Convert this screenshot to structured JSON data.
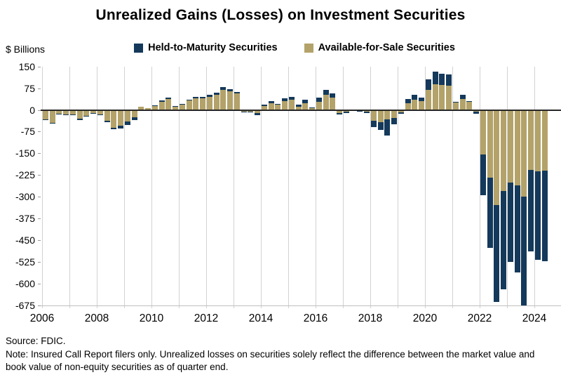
{
  "title": "Unrealized Gains (Losses) on Investment Securities",
  "y_axis_unit": "$ Billions",
  "legend": {
    "htm_label": "Held-to-Maturity Securities",
    "afs_label": "Available-for-Sale Securities"
  },
  "source": "Source: FDIC.",
  "note": "Note: Insured Call Report filers only. Unrealized losses on securities solely reflect the difference between the market value and book value of non-equity securities as of quarter end.",
  "colors": {
    "htm": "#14395B",
    "afs": "#B3A269",
    "gridline": "#D2D2D2",
    "zero_line": "#262626",
    "text": "#000000"
  },
  "chart_data": {
    "type": "bar",
    "stacked": true,
    "title": "Unrealized Gains (Losses) on Investment Securities",
    "ylabel": "$ Billions",
    "ylim": [
      -675,
      150
    ],
    "y_ticks": [
      150,
      75,
      0,
      -75,
      -150,
      -225,
      -300,
      -375,
      -450,
      -525,
      -600,
      -675
    ],
    "x_tick_labels": [
      "2006",
      "2008",
      "2010",
      "2012",
      "2014",
      "2016",
      "2018",
      "2020",
      "2022",
      "2024"
    ],
    "grid": "vertical-yearly",
    "legend_position": "top",
    "categories": [
      "2006 Q1",
      "2006 Q2",
      "2006 Q3",
      "2006 Q4",
      "2007 Q1",
      "2007 Q2",
      "2007 Q3",
      "2007 Q4",
      "2008 Q1",
      "2008 Q2",
      "2008 Q3",
      "2008 Q4",
      "2009 Q1",
      "2009 Q2",
      "2009 Q3",
      "2009 Q4",
      "2010 Q1",
      "2010 Q2",
      "2010 Q3",
      "2010 Q4",
      "2011 Q1",
      "2011 Q2",
      "2011 Q3",
      "2011 Q4",
      "2012 Q1",
      "2012 Q2",
      "2012 Q3",
      "2012 Q4",
      "2013 Q1",
      "2013 Q2",
      "2013 Q3",
      "2013 Q4",
      "2014 Q1",
      "2014 Q2",
      "2014 Q3",
      "2014 Q4",
      "2015 Q1",
      "2015 Q2",
      "2015 Q3",
      "2015 Q4",
      "2016 Q1",
      "2016 Q2",
      "2016 Q3",
      "2016 Q4",
      "2017 Q1",
      "2017 Q2",
      "2017 Q3",
      "2017 Q4",
      "2018 Q1",
      "2018 Q2",
      "2018 Q3",
      "2018 Q4",
      "2019 Q1",
      "2019 Q2",
      "2019 Q3",
      "2019 Q4",
      "2020 Q1",
      "2020 Q2",
      "2020 Q3",
      "2020 Q4",
      "2021 Q1",
      "2021 Q2",
      "2021 Q3",
      "2021 Q4",
      "2022 Q1",
      "2022 Q2",
      "2022 Q3",
      "2022 Q4",
      "2023 Q1",
      "2023 Q2",
      "2023 Q3",
      "2023 Q4",
      "2024 Q1",
      "2024 Q2"
    ],
    "series": [
      {
        "name": "Held-to-Maturity Securities",
        "color": "#14395B",
        "values": [
          -2,
          -3,
          -1,
          -1,
          -1,
          -3,
          -2,
          -1,
          -2,
          -4,
          -5,
          -10,
          -11,
          -9,
          0,
          0,
          2,
          4,
          5,
          1,
          3,
          4,
          5,
          5,
          6,
          6,
          8,
          7,
          6,
          -1,
          -1,
          -6,
          3,
          6,
          3,
          10,
          10,
          6,
          11,
          2,
          13,
          16,
          16,
          -7,
          -4,
          -1,
          -1,
          -4,
          -23,
          -28,
          -55,
          -24,
          -5,
          14,
          18,
          13,
          36,
          43,
          40,
          38,
          2,
          13,
          2,
          -8,
          -142,
          -243,
          -337,
          -340,
          -276,
          -303,
          -375,
          -283,
          -306,
          -312
        ]
      },
      {
        "name": "Available-for-Sale Securities",
        "color": "#B3A269",
        "values": [
          -32,
          -44,
          -13,
          -15,
          -15,
          -31,
          -20,
          -11,
          -16,
          -38,
          -62,
          -55,
          -40,
          -26,
          10,
          5,
          14,
          29,
          38,
          13,
          17,
          32,
          41,
          39,
          45,
          53,
          70,
          64,
          57,
          -6,
          -5,
          -11,
          14,
          24,
          17,
          30,
          36,
          11,
          23,
          7,
          29,
          52,
          42,
          -10,
          -6,
          -2,
          -3,
          -6,
          -37,
          -42,
          -33,
          -27,
          -8,
          24,
          35,
          30,
          69,
          89,
          85,
          84,
          25,
          38,
          28,
          -5,
          -154,
          -235,
          -328,
          -280,
          -250,
          -260,
          -300,
          -207,
          -212,
          -210
        ]
      }
    ]
  }
}
